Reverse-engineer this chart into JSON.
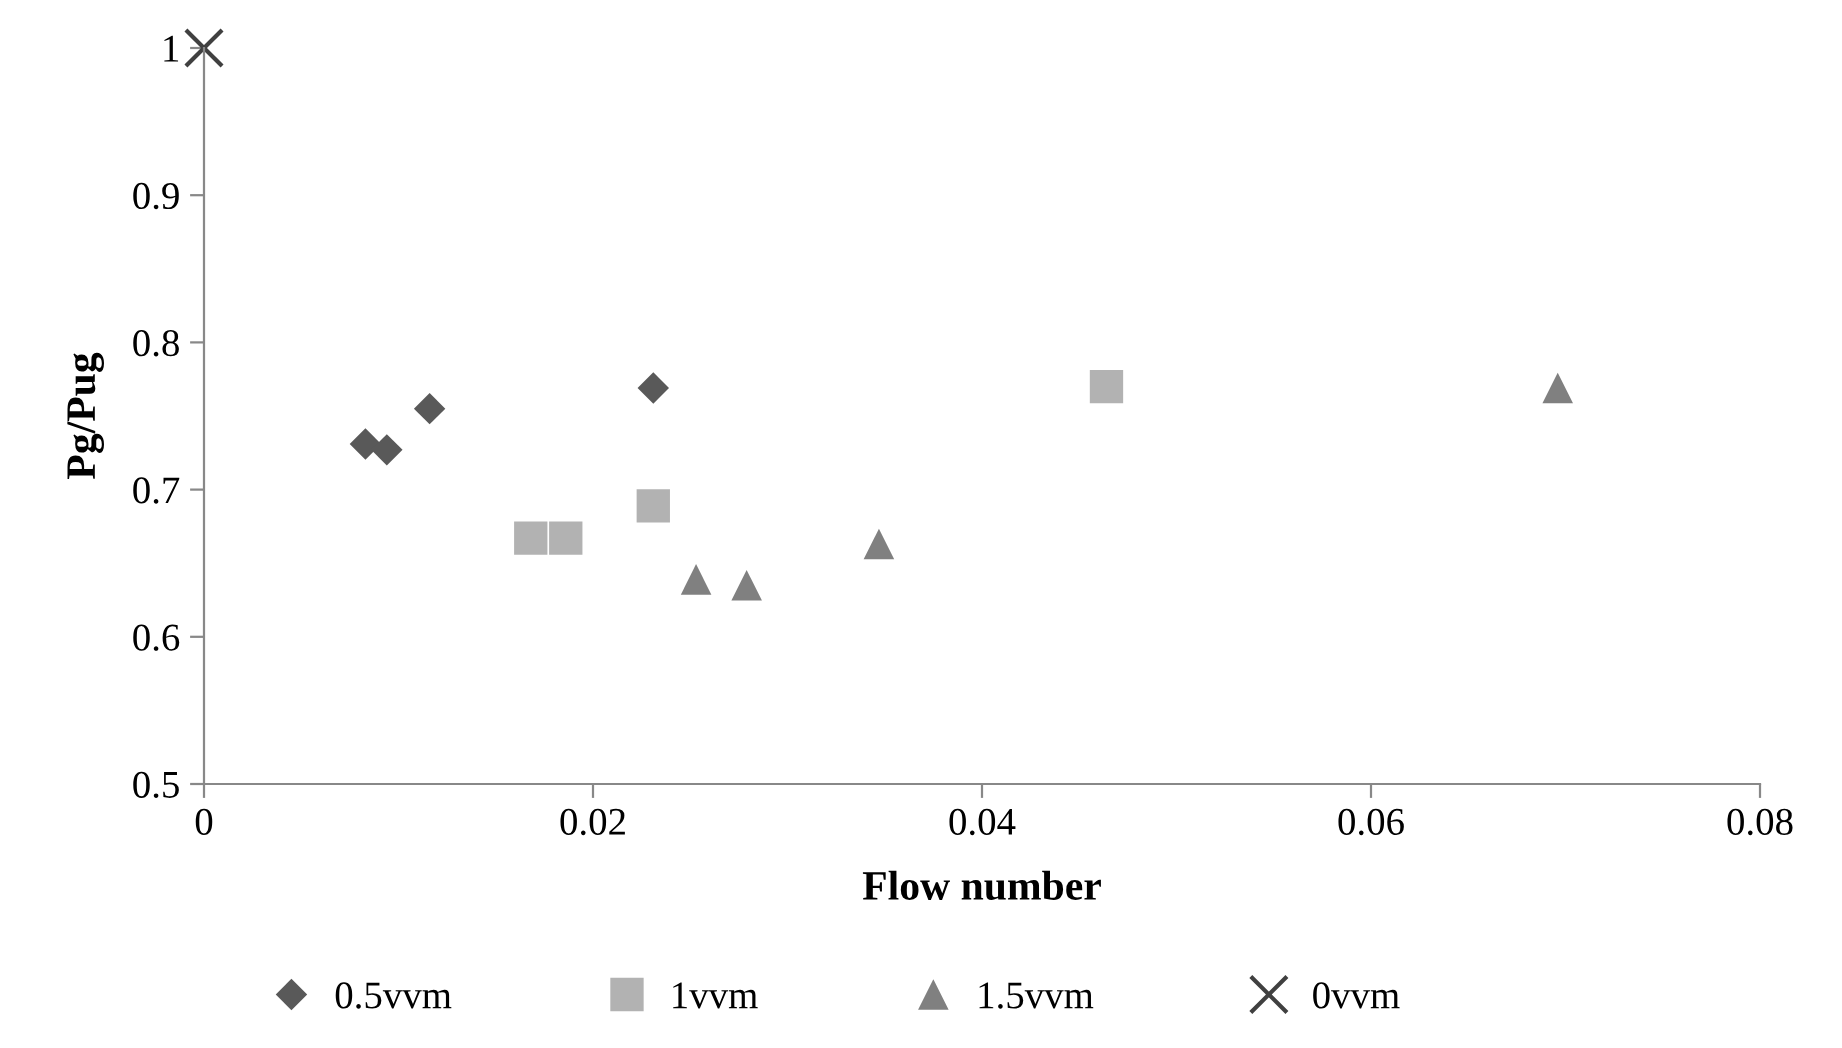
{
  "chart_data": {
    "type": "scatter",
    "xlabel": "Flow number",
    "ylabel": "Pg/Pug",
    "xlim": [
      0,
      0.08
    ],
    "xticks": [
      0,
      0.02,
      0.04,
      0.06,
      0.08
    ],
    "ylim": [
      0.5,
      1
    ],
    "yticks": [
      0.5,
      0.6,
      0.7,
      0.8,
      0.9,
      1
    ],
    "grid": false,
    "legend": "bottom",
    "series": [
      {
        "name": "0.5vvm",
        "color": "#595959",
        "marker": "diamond",
        "x": [
          0.0083,
          0.0094,
          0.0116,
          0.0231
        ],
        "values": [
          0.731,
          0.727,
          0.755,
          0.769
        ]
      },
      {
        "name": "1vvm",
        "color": "#b2b2b2",
        "marker": "square",
        "x": [
          0.0168,
          0.0186,
          0.0231,
          0.0464
        ],
        "values": [
          0.667,
          0.667,
          0.689,
          0.77
        ]
      },
      {
        "name": "1.5vvm",
        "color": "#808080",
        "marker": "triangle",
        "x": [
          0.0253,
          0.0279,
          0.0347,
          0.0696
        ],
        "values": [
          0.639,
          0.635,
          0.663,
          0.769
        ]
      },
      {
        "name": "0vvm",
        "color": "#404040",
        "marker": "cross",
        "x": [
          0
        ],
        "values": [
          1
        ]
      }
    ]
  }
}
